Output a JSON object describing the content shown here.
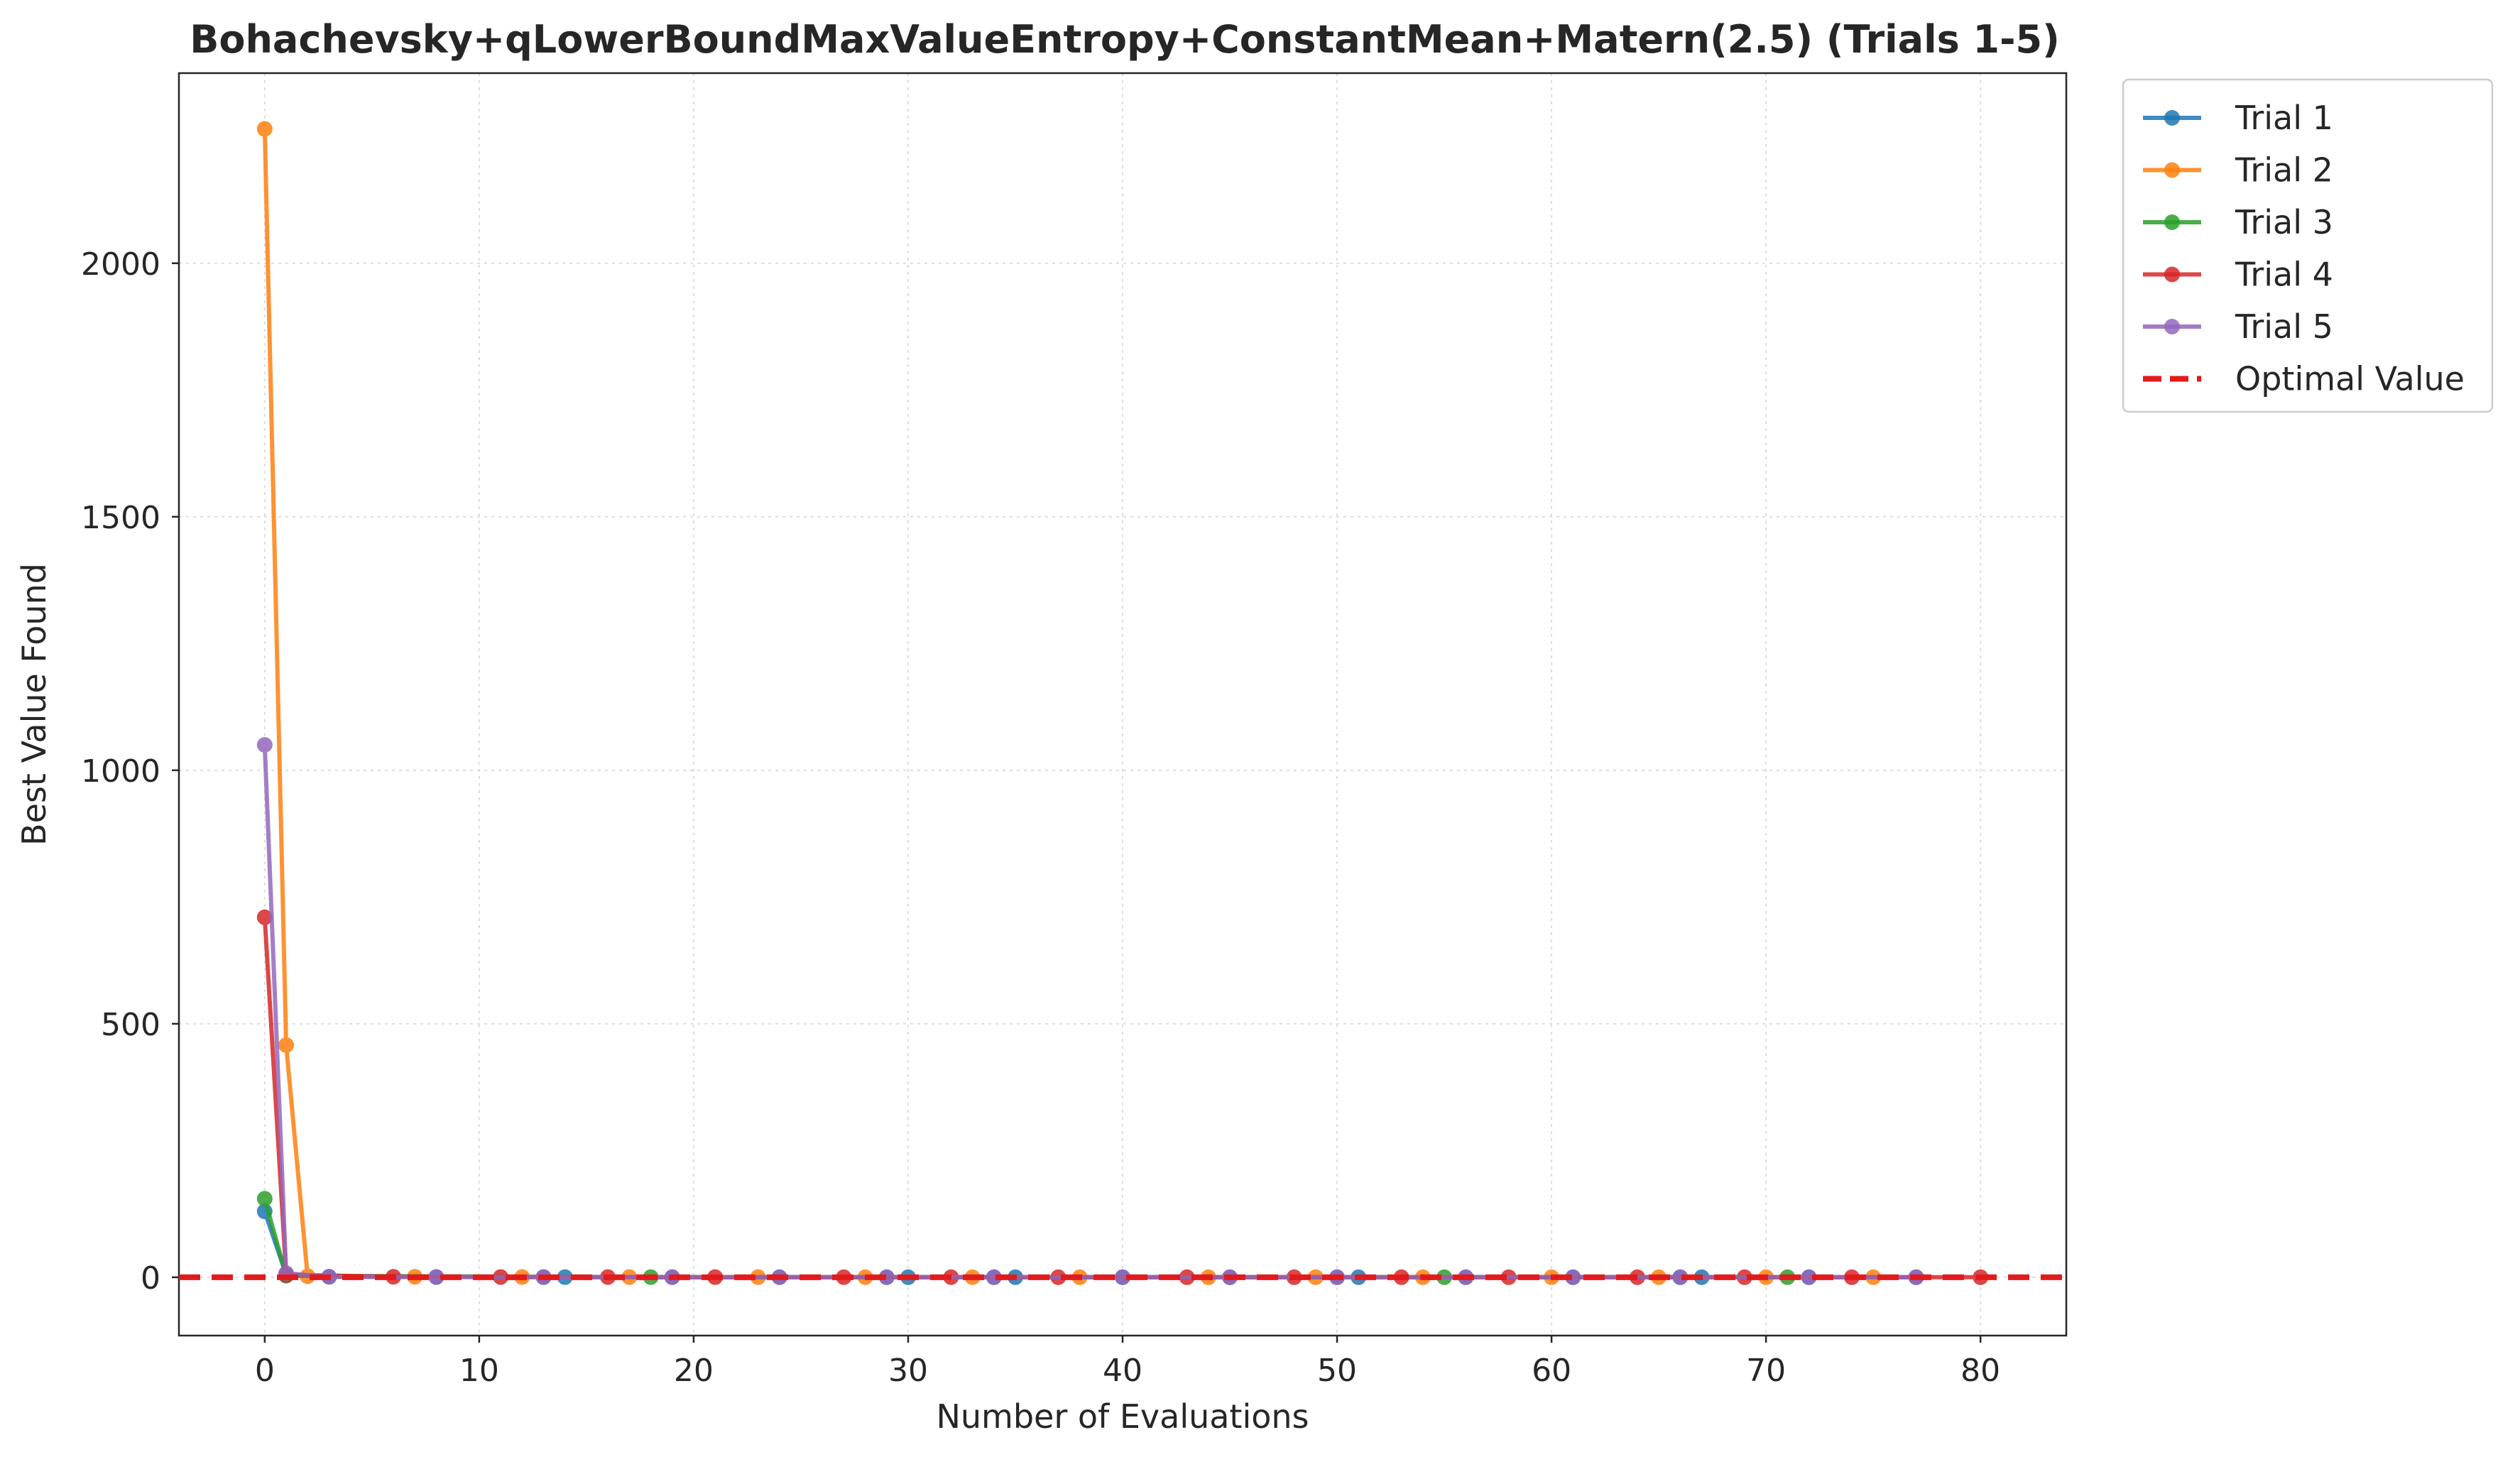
{
  "chart_data": {
    "type": "line",
    "title": "Bohachevsky+qLowerBoundMaxValueEntropy+ConstantMean+Matern(2.5) (Trials 1-5)",
    "xlabel": "Number of Evaluations",
    "ylabel": "Best Value Found",
    "xlim": [
      -4,
      84
    ],
    "ylim": [
      -115,
      2375
    ],
    "xticks": [
      0,
      10,
      20,
      30,
      40,
      50,
      60,
      70,
      80
    ],
    "yticks": [
      0,
      500,
      1000,
      1500,
      2000
    ],
    "grid": true,
    "legend_position": "outside-top-right",
    "series": [
      {
        "name": "Trial 1",
        "color": "#1f77b4",
        "x": [
          0,
          1,
          3,
          8,
          13,
          14,
          19,
          24,
          29,
          30,
          34,
          35,
          40,
          45,
          50,
          51,
          56,
          61,
          66,
          67,
          72,
          77
        ],
        "y": [
          130,
          5,
          1,
          0.5,
          0.3,
          0.3,
          0.2,
          0.2,
          0.1,
          0.1,
          0.1,
          0.1,
          0.1,
          0.1,
          0.1,
          0.1,
          0.1,
          0.1,
          0.1,
          0.1,
          0.1,
          0.1
        ]
      },
      {
        "name": "Trial 2",
        "color": "#ff7f0e",
        "x": [
          0,
          1,
          2,
          7,
          12,
          17,
          23,
          28,
          33,
          38,
          44,
          49,
          54,
          60,
          65,
          70,
          75
        ],
        "y": [
          2265,
          458,
          2,
          1,
          0.5,
          0.4,
          0.3,
          0.2,
          0.2,
          0.1,
          0.1,
          0.1,
          0.1,
          0.1,
          0.1,
          0.1,
          0.1
        ]
      },
      {
        "name": "Trial 3",
        "color": "#2ca02c",
        "x": [
          0,
          1,
          18,
          55,
          71
        ],
        "y": [
          155,
          3,
          0.3,
          0.1,
          0.1
        ]
      },
      {
        "name": "Trial 4",
        "color": "#d62728",
        "x": [
          0,
          1,
          6,
          11,
          16,
          21,
          27,
          32,
          37,
          43,
          48,
          53,
          58,
          64,
          69,
          74,
          80
        ],
        "y": [
          710,
          5,
          1,
          0.5,
          0.4,
          0.3,
          0.2,
          0.2,
          0.1,
          0.1,
          0.1,
          0.1,
          0.1,
          0.1,
          0.1,
          0.1,
          0.1
        ]
      },
      {
        "name": "Trial 5",
        "color": "#9467bd",
        "x": [
          0,
          1,
          3,
          8,
          13,
          19,
          24,
          29,
          34,
          40,
          45,
          50,
          56,
          61,
          66,
          72,
          77
        ],
        "y": [
          1050,
          8,
          1,
          0.5,
          0.4,
          0.3,
          0.2,
          0.2,
          0.1,
          0.1,
          0.1,
          0.1,
          0.1,
          0.1,
          0.1,
          0.1,
          0.1
        ]
      }
    ],
    "reference_line": {
      "name": "Optimal Value",
      "y": 0,
      "color": "#e31a1c",
      "style": "dashed"
    }
  }
}
